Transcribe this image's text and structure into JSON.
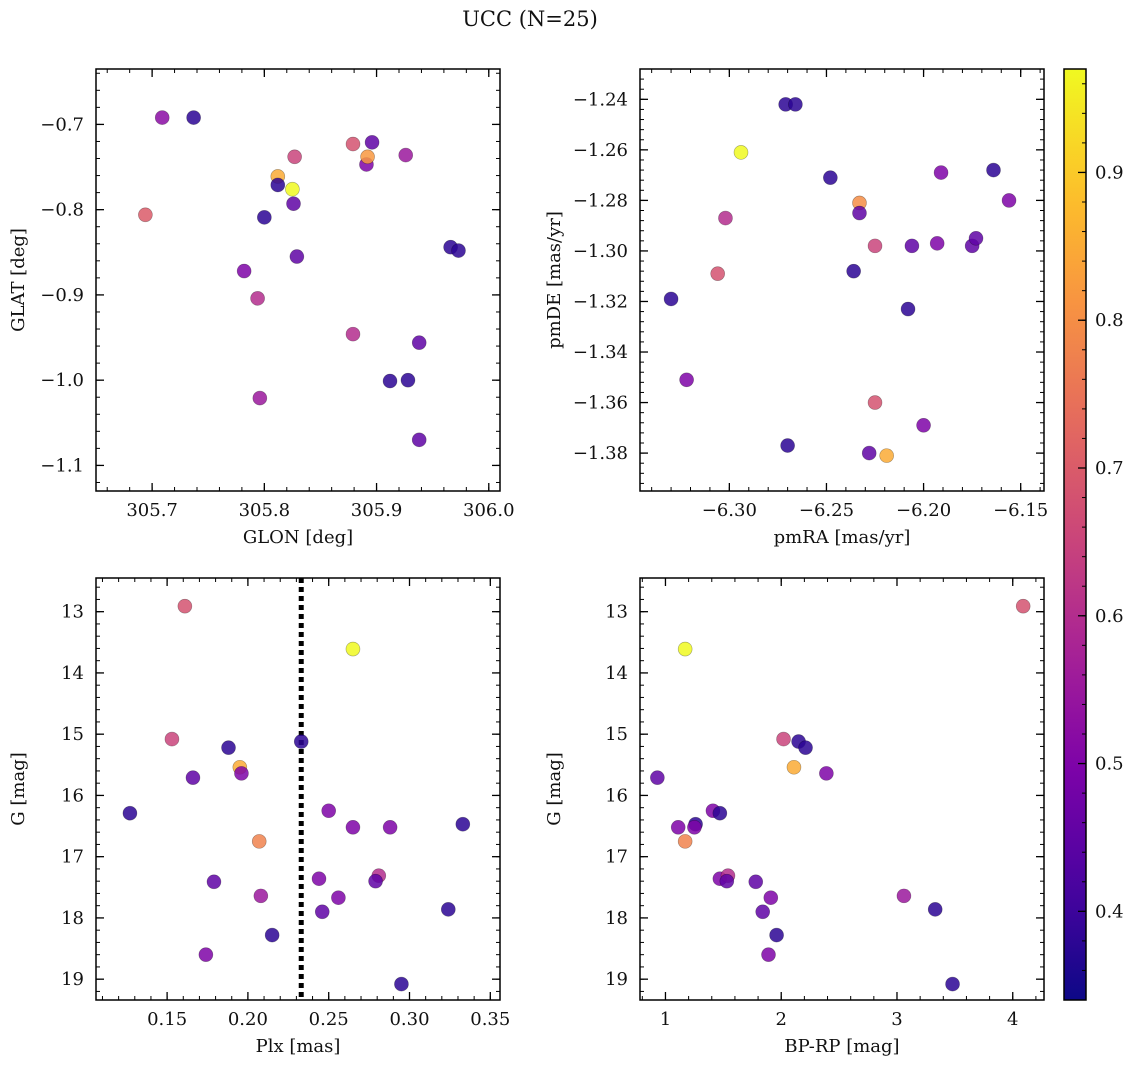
{
  "figure": {
    "title": "UCC (N=25)",
    "colormap": "plasma",
    "colorbar": {
      "range": [
        0.34,
        0.97
      ],
      "ticks": [
        0.4,
        0.5,
        0.6,
        0.7,
        0.8,
        0.9
      ],
      "tick_labels": [
        "0.4",
        "0.5",
        "0.6",
        "0.7",
        "0.8",
        "0.9"
      ]
    }
  },
  "chart_data": [
    {
      "type": "scatter",
      "title": "",
      "xlabel": "GLON [deg]",
      "ylabel": "GLAT [deg]",
      "xlim": [
        305.65,
        306.01
      ],
      "ylim": [
        -1.13,
        -0.635
      ],
      "xticks": [
        305.7,
        305.8,
        305.9,
        306.0
      ],
      "xtick_labels": [
        "305.7",
        "305.8",
        "305.9",
        "306.0"
      ],
      "yticks": [
        -0.7,
        -0.8,
        -0.9,
        -1.0,
        -1.1
      ],
      "ytick_labels": [
        "−0.7",
        "−0.8",
        "−0.9",
        "−1.0",
        "−1.1"
      ],
      "points": [
        {
          "x": 305.709,
          "y": -0.692,
          "c": 0.52
        },
        {
          "x": 305.737,
          "y": -0.692,
          "c": 0.38
        },
        {
          "x": 305.694,
          "y": -0.806,
          "c": 0.7
        },
        {
          "x": 305.782,
          "y": -0.872,
          "c": 0.5
        },
        {
          "x": 305.794,
          "y": -0.904,
          "c": 0.6
        },
        {
          "x": 305.796,
          "y": -1.021,
          "c": 0.55
        },
        {
          "x": 305.8,
          "y": -0.809,
          "c": 0.38
        },
        {
          "x": 305.812,
          "y": -0.761,
          "c": 0.85
        },
        {
          "x": 305.812,
          "y": -0.771,
          "c": 0.38
        },
        {
          "x": 305.825,
          "y": -0.776,
          "c": 0.97
        },
        {
          "x": 305.826,
          "y": -0.793,
          "c": 0.45
        },
        {
          "x": 305.827,
          "y": -0.738,
          "c": 0.65
        },
        {
          "x": 305.829,
          "y": -0.855,
          "c": 0.45
        },
        {
          "x": 305.879,
          "y": -0.723,
          "c": 0.68
        },
        {
          "x": 305.879,
          "y": -0.946,
          "c": 0.6
        },
        {
          "x": 305.891,
          "y": -0.747,
          "c": 0.5
        },
        {
          "x": 305.892,
          "y": -0.738,
          "c": 0.82
        },
        {
          "x": 305.896,
          "y": -0.721,
          "c": 0.45
        },
        {
          "x": 305.912,
          "y": -1.001,
          "c": 0.38
        },
        {
          "x": 305.926,
          "y": -0.736,
          "c": 0.55
        },
        {
          "x": 305.928,
          "y": -1.0,
          "c": 0.38
        },
        {
          "x": 305.938,
          "y": -0.956,
          "c": 0.45
        },
        {
          "x": 305.938,
          "y": -1.07,
          "c": 0.45
        },
        {
          "x": 305.966,
          "y": -0.844,
          "c": 0.38
        },
        {
          "x": 305.973,
          "y": -0.848,
          "c": 0.38
        }
      ]
    },
    {
      "type": "scatter",
      "title": "",
      "xlabel": "pmRA [mas/yr]",
      "ylabel": "pmDE [mas/yr]",
      "xlim": [
        -6.346,
        -6.138
      ],
      "ylim": [
        -1.395,
        -1.228
      ],
      "xticks": [
        -6.3,
        -6.25,
        -6.2,
        -6.15
      ],
      "xtick_labels": [
        "−6.30",
        "−6.25",
        "−6.20",
        "−6.15"
      ],
      "yticks": [
        -1.24,
        -1.26,
        -1.28,
        -1.3,
        -1.32,
        -1.34,
        -1.36,
        -1.38
      ],
      "ytick_labels": [
        "−1.24",
        "−1.26",
        "−1.28",
        "−1.30",
        "−1.32",
        "−1.34",
        "−1.36",
        "−1.38"
      ],
      "points": [
        {
          "x": -6.33,
          "y": -1.319,
          "c": 0.38
        },
        {
          "x": -6.322,
          "y": -1.351,
          "c": 0.5
        },
        {
          "x": -6.306,
          "y": -1.309,
          "c": 0.68
        },
        {
          "x": -6.302,
          "y": -1.287,
          "c": 0.6
        },
        {
          "x": -6.294,
          "y": -1.261,
          "c": 0.97
        },
        {
          "x": -6.271,
          "y": -1.242,
          "c": 0.38
        },
        {
          "x": -6.27,
          "y": -1.377,
          "c": 0.38
        },
        {
          "x": -6.266,
          "y": -1.242,
          "c": 0.38
        },
        {
          "x": -6.248,
          "y": -1.271,
          "c": 0.38
        },
        {
          "x": -6.236,
          "y": -1.308,
          "c": 0.38
        },
        {
          "x": -6.233,
          "y": -1.281,
          "c": 0.8
        },
        {
          "x": -6.233,
          "y": -1.285,
          "c": 0.45
        },
        {
          "x": -6.228,
          "y": -1.38,
          "c": 0.45
        },
        {
          "x": -6.225,
          "y": -1.298,
          "c": 0.65
        },
        {
          "x": -6.225,
          "y": -1.36,
          "c": 0.68
        },
        {
          "x": -6.219,
          "y": -1.381,
          "c": 0.85
        },
        {
          "x": -6.208,
          "y": -1.323,
          "c": 0.38
        },
        {
          "x": -6.206,
          "y": -1.298,
          "c": 0.45
        },
        {
          "x": -6.2,
          "y": -1.369,
          "c": 0.5
        },
        {
          "x": -6.193,
          "y": -1.297,
          "c": 0.5
        },
        {
          "x": -6.191,
          "y": -1.269,
          "c": 0.5
        },
        {
          "x": -6.175,
          "y": -1.298,
          "c": 0.45
        },
        {
          "x": -6.173,
          "y": -1.295,
          "c": 0.45
        },
        {
          "x": -6.164,
          "y": -1.268,
          "c": 0.38
        },
        {
          "x": -6.156,
          "y": -1.28,
          "c": 0.5
        }
      ]
    },
    {
      "type": "scatter",
      "title": "",
      "xlabel": "Plx [mas]",
      "ylabel": "G [mag]",
      "xlim": [
        0.106,
        0.356
      ],
      "ylim": [
        19.34,
        12.45
      ],
      "y_inverted": true,
      "vline": {
        "x": 0.233,
        "style": "dotted"
      },
      "xticks": [
        0.15,
        0.2,
        0.25,
        0.3,
        0.35
      ],
      "xtick_labels": [
        "0.15",
        "0.20",
        "0.25",
        "0.30",
        "0.35"
      ],
      "yticks": [
        13,
        14,
        15,
        16,
        17,
        18,
        19
      ],
      "ytick_labels": [
        "13",
        "14",
        "15",
        "16",
        "17",
        "18",
        "19"
      ],
      "points": [
        {
          "x": 0.161,
          "y": 12.91,
          "c": 0.68
        },
        {
          "x": 0.265,
          "y": 13.61,
          "c": 0.97
        },
        {
          "x": 0.153,
          "y": 15.08,
          "c": 0.65
        },
        {
          "x": 0.188,
          "y": 15.22,
          "c": 0.38
        },
        {
          "x": 0.233,
          "y": 15.12,
          "c": 0.38
        },
        {
          "x": 0.195,
          "y": 15.54,
          "c": 0.85
        },
        {
          "x": 0.196,
          "y": 15.64,
          "c": 0.5
        },
        {
          "x": 0.166,
          "y": 15.71,
          "c": 0.45
        },
        {
          "x": 0.127,
          "y": 16.29,
          "c": 0.38
        },
        {
          "x": 0.25,
          "y": 16.25,
          "c": 0.5
        },
        {
          "x": 0.265,
          "y": 16.52,
          "c": 0.5
        },
        {
          "x": 0.288,
          "y": 16.52,
          "c": 0.5
        },
        {
          "x": 0.333,
          "y": 16.47,
          "c": 0.38
        },
        {
          "x": 0.207,
          "y": 16.75,
          "c": 0.78
        },
        {
          "x": 0.281,
          "y": 17.31,
          "c": 0.6
        },
        {
          "x": 0.244,
          "y": 17.36,
          "c": 0.5
        },
        {
          "x": 0.279,
          "y": 17.4,
          "c": 0.45
        },
        {
          "x": 0.179,
          "y": 17.41,
          "c": 0.45
        },
        {
          "x": 0.208,
          "y": 17.64,
          "c": 0.55
        },
        {
          "x": 0.256,
          "y": 17.67,
          "c": 0.5
        },
        {
          "x": 0.246,
          "y": 17.9,
          "c": 0.45
        },
        {
          "x": 0.324,
          "y": 17.86,
          "c": 0.38
        },
        {
          "x": 0.215,
          "y": 18.28,
          "c": 0.38
        },
        {
          "x": 0.174,
          "y": 18.6,
          "c": 0.5
        },
        {
          "x": 0.295,
          "y": 19.08,
          "c": 0.38
        }
      ]
    },
    {
      "type": "scatter",
      "title": "",
      "xlabel": "BP-RP [mag]",
      "ylabel": "G [mag]",
      "xlim": [
        0.78,
        4.27
      ],
      "ylim": [
        19.34,
        12.45
      ],
      "y_inverted": true,
      "xticks": [
        1,
        2,
        3,
        4
      ],
      "xtick_labels": [
        "1",
        "2",
        "3",
        "4"
      ],
      "yticks": [
        13,
        14,
        15,
        16,
        17,
        18,
        19
      ],
      "ytick_labels": [
        "13",
        "14",
        "15",
        "16",
        "17",
        "18",
        "19"
      ],
      "points": [
        {
          "x": 4.09,
          "y": 12.91,
          "c": 0.68
        },
        {
          "x": 1.17,
          "y": 13.61,
          "c": 0.97
        },
        {
          "x": 2.02,
          "y": 15.08,
          "c": 0.65
        },
        {
          "x": 2.15,
          "y": 15.12,
          "c": 0.38
        },
        {
          "x": 2.21,
          "y": 15.22,
          "c": 0.38
        },
        {
          "x": 2.11,
          "y": 15.54,
          "c": 0.85
        },
        {
          "x": 2.39,
          "y": 15.64,
          "c": 0.5
        },
        {
          "x": 0.93,
          "y": 15.71,
          "c": 0.45
        },
        {
          "x": 1.41,
          "y": 16.25,
          "c": 0.5
        },
        {
          "x": 1.47,
          "y": 16.29,
          "c": 0.38
        },
        {
          "x": 1.26,
          "y": 16.47,
          "c": 0.38
        },
        {
          "x": 1.25,
          "y": 16.52,
          "c": 0.5
        },
        {
          "x": 1.11,
          "y": 16.52,
          "c": 0.5
        },
        {
          "x": 1.17,
          "y": 16.75,
          "c": 0.78
        },
        {
          "x": 1.47,
          "y": 17.36,
          "c": 0.5
        },
        {
          "x": 1.54,
          "y": 17.31,
          "c": 0.6
        },
        {
          "x": 1.53,
          "y": 17.4,
          "c": 0.45
        },
        {
          "x": 1.78,
          "y": 17.41,
          "c": 0.45
        },
        {
          "x": 3.06,
          "y": 17.64,
          "c": 0.55
        },
        {
          "x": 1.91,
          "y": 17.67,
          "c": 0.5
        },
        {
          "x": 1.84,
          "y": 17.9,
          "c": 0.45
        },
        {
          "x": 3.33,
          "y": 17.86,
          "c": 0.38
        },
        {
          "x": 1.96,
          "y": 18.28,
          "c": 0.38
        },
        {
          "x": 1.89,
          "y": 18.6,
          "c": 0.5
        },
        {
          "x": 3.48,
          "y": 19.08,
          "c": 0.38
        }
      ]
    }
  ]
}
